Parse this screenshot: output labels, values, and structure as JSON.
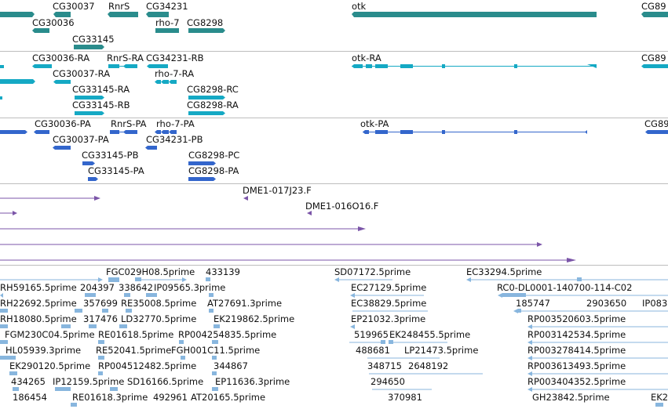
{
  "colors": {
    "gene": "#2a8c8c",
    "transcript": "#15a9c4",
    "protein": "#3366cc",
    "clone": "#7b55a8",
    "est": "#88b6de",
    "separator": "#bdbdbd"
  },
  "tracks": {
    "genes": {
      "labels": [
        "CG30037",
        "RnrS",
        "CG34231",
        "otk",
        "CG89",
        "CG30036",
        "rho-7",
        "CG8298",
        "CG33145"
      ]
    },
    "transcripts": {
      "labels": [
        "CG30036-RA",
        "RnrS-RA",
        "CG34231-RB",
        "otk-RA",
        "CG89",
        "CG30037-RA",
        "rho-7-RA",
        "CG33145-RA",
        "CG8298-RC",
        "CG33145-RB",
        "CG8298-RA"
      ]
    },
    "proteins": {
      "labels": [
        "CG30036-PA",
        "RnrS-PA",
        "rho-7-PA",
        "otk-PA",
        "CG89",
        "CG30037-PA",
        "CG34231-PB",
        "CG33145-PB",
        "CG8298-PC",
        "CG33145-PA",
        "CG8298-PA"
      ]
    },
    "clones": {
      "labels": [
        "DME1-017J23.F",
        "DME1-016O16.F"
      ]
    },
    "ests": {
      "labels": [
        "FGC029H08.5prime",
        "433139",
        "SD07172.5prime",
        "EC33294.5prime",
        "RH59165.5prime",
        "204397",
        "338642",
        "IP09565.3prime",
        "EC27129.5prime",
        "RC0-DL0001-140700-114-C02",
        "RH22692.5prime",
        "357699",
        "RE35008.5prime",
        "AT27691.3prime",
        "EC38829.5prime",
        "185747",
        "2903650",
        "IP083",
        "RH18080.5prime",
        "317476",
        "LD32770.5prime",
        "EK219862.5prime",
        "EP21032.3prime",
        "RP003520603.5prime",
        "FGM230C04.5prime",
        "RE01618.5prime",
        "RP004254835.5prime",
        "519965",
        "EK248455.5prime",
        "RP003142534.5prime",
        "HL05939.3prime",
        "RE52041.5prime",
        "FGH001C11.5prime",
        "488681",
        "LP21473.5prime",
        "RP003278414.5prime",
        "EK290120.5prime",
        "RP004512482.5prime",
        "344867",
        "348715",
        "2648192",
        "RP003613493.5prime",
        "434265",
        "IP12159.5prime",
        "SD16166.5prime",
        "EP11636.3prime",
        "294650",
        "RP003404352.5prime",
        "186454",
        "RE01618.3prime",
        "492961",
        "AT20165.5prime",
        "370981",
        "GH23842.5prime",
        "EK2"
      ]
    }
  }
}
